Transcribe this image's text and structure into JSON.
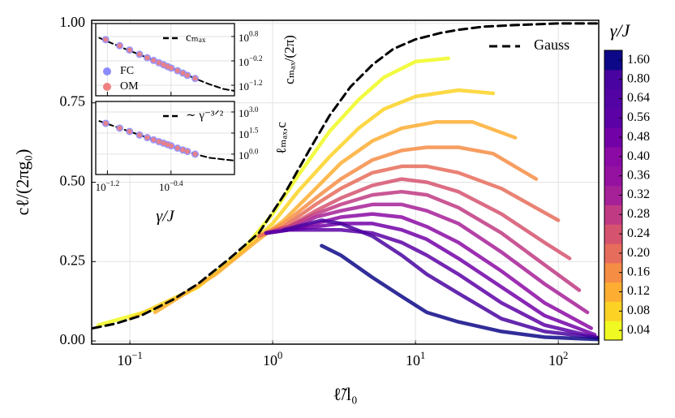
{
  "chart_data": [
    {
      "type": "line",
      "xlabel": "ℓ̃/l₀",
      "ylabel": "cℓ/(2πg₀)",
      "xlog": true,
      "xlim": [
        0.054,
        192
      ],
      "ylim": [
        -0.01,
        1.01
      ],
      "grid": true,
      "xticks": [
        {
          "value": 0.1,
          "label": "10",
          "exponent": "−1"
        },
        {
          "value": 1,
          "label": "10",
          "exponent": "0"
        },
        {
          "value": 10,
          "label": "10",
          "exponent": "1"
        },
        {
          "value": 100,
          "label": "10",
          "exponent": "2"
        }
      ],
      "yticks": [
        {
          "value": 0,
          "label": "0.00"
        },
        {
          "value": 0.25,
          "label": "0.25"
        },
        {
          "value": 0.5,
          "label": "0.50"
        },
        {
          "value": 0.75,
          "label": "0.75"
        },
        {
          "value": 1,
          "label": "1.00"
        }
      ],
      "legend": "upper right",
      "series": [
        {
          "color": "#f0f921",
          "x": [
            0.06,
            0.15,
            0.3,
            0.6,
            1,
            1.5,
            2.5,
            4,
            6,
            10,
            17
          ],
          "values": [
            0.05,
            0.1,
            0.17,
            0.28,
            0.4,
            0.52,
            0.66,
            0.76,
            0.83,
            0.88,
            0.89
          ]
        },
        {
          "color": "#fcd225",
          "x": [
            0.1,
            0.3,
            0.6,
            1,
            1.5,
            2.5,
            4,
            6,
            10,
            20,
            35
          ],
          "values": [
            0.07,
            0.17,
            0.28,
            0.37,
            0.47,
            0.58,
            0.67,
            0.73,
            0.77,
            0.79,
            0.78
          ]
        },
        {
          "color": "#fdae32",
          "x": [
            0.15,
            0.4,
            0.8,
            1.2,
            2,
            3,
            5,
            8,
            14,
            25,
            50
          ],
          "values": [
            0.09,
            0.21,
            0.32,
            0.38,
            0.48,
            0.56,
            0.63,
            0.67,
            0.69,
            0.69,
            0.64
          ]
        },
        {
          "color": "#f68d45",
          "x": [
            0.8,
            1.2,
            2,
            3,
            5,
            8,
            12,
            20,
            35,
            70
          ],
          "values": [
            0.33,
            0.37,
            0.45,
            0.51,
            0.57,
            0.6,
            0.61,
            0.61,
            0.59,
            0.51
          ]
        },
        {
          "color": "#e66c5c",
          "x": [
            0.8,
            1.2,
            2,
            3,
            5,
            8,
            12,
            20,
            40,
            100
          ],
          "values": [
            0.33,
            0.36,
            0.43,
            0.48,
            0.53,
            0.55,
            0.55,
            0.53,
            0.48,
            0.38
          ]
        },
        {
          "color": "#d5536f",
          "x": [
            0.9,
            1.3,
            2,
            3,
            5,
            8,
            12,
            20,
            40,
            80,
            120
          ],
          "values": [
            0.34,
            0.36,
            0.41,
            0.45,
            0.49,
            0.51,
            0.5,
            0.47,
            0.4,
            0.31,
            0.26
          ]
        },
        {
          "color": "#c03a83",
          "x": [
            0.9,
            1.3,
            2,
            3,
            5,
            8,
            12,
            20,
            40,
            80,
            140
          ],
          "values": [
            0.34,
            0.36,
            0.4,
            0.43,
            0.46,
            0.47,
            0.46,
            0.42,
            0.34,
            0.24,
            0.16
          ]
        },
        {
          "color": "#a62098",
          "x": [
            0.9,
            1.3,
            2,
            3,
            5,
            8,
            12,
            20,
            40,
            80,
            160
          ],
          "values": [
            0.34,
            0.35,
            0.39,
            0.41,
            0.43,
            0.43,
            0.41,
            0.37,
            0.28,
            0.18,
            0.09
          ]
        },
        {
          "color": "#8b0aa5",
          "x": [
            0.9,
            1.3,
            2,
            3,
            5,
            8,
            12,
            20,
            40,
            80,
            170
          ],
          "values": [
            0.34,
            0.35,
            0.37,
            0.39,
            0.4,
            0.39,
            0.36,
            0.31,
            0.22,
            0.12,
            0.04
          ]
        },
        {
          "color": "#7201a8",
          "x": [
            0.9,
            1.3,
            2,
            3,
            5,
            8,
            12,
            20,
            40,
            80,
            180
          ],
          "values": [
            0.34,
            0.35,
            0.36,
            0.37,
            0.37,
            0.35,
            0.32,
            0.26,
            0.17,
            0.08,
            0.02
          ]
        },
        {
          "color": "#5c01a6",
          "x": [
            0.9,
            1.3,
            2,
            3,
            5,
            8,
            12,
            20,
            40,
            80,
            190
          ],
          "values": [
            0.34,
            0.35,
            0.35,
            0.35,
            0.34,
            0.31,
            0.27,
            0.21,
            0.12,
            0.05,
            0.01
          ]
        },
        {
          "color": "#4903a0",
          "x": [
            1.2,
            2.2,
            3,
            5,
            8,
            12,
            20,
            40,
            80,
            190
          ],
          "values": [
            0.35,
            0.38,
            0.37,
            0.33,
            0.27,
            0.21,
            0.15,
            0.07,
            0.03,
            0.01
          ]
        },
        {
          "color": "#0d0887",
          "x": [
            2.2,
            3,
            5,
            8,
            12,
            20,
            40,
            80,
            190
          ],
          "values": [
            0.3,
            0.27,
            0.2,
            0.14,
            0.09,
            0.06,
            0.03,
            0.012,
            0.005
          ]
        },
        {
          "name": "Gauss",
          "color": "#000000",
          "style": "dashed",
          "x": [
            0.055,
            0.08,
            0.12,
            0.2,
            0.3,
            0.5,
            0.8,
            1.2,
            1.8,
            2.5,
            3.5,
            5,
            7,
            10,
            15,
            20,
            30,
            50,
            100,
            190
          ],
          "values": [
            0.04,
            0.055,
            0.08,
            0.13,
            0.18,
            0.26,
            0.34,
            0.46,
            0.6,
            0.71,
            0.8,
            0.87,
            0.92,
            0.95,
            0.97,
            0.98,
            0.99,
            0.995,
            1,
            1
          ]
        }
      ],
      "colorbar": {
        "label": "γ/J",
        "ticks": [
          0.04,
          0.08,
          0.12,
          0.16,
          {
            "value": 0.2,
            "label": "0.20"
          },
          0.24,
          0.28,
          0.32,
          0.36,
          {
            "value": 0.4,
            "label": "0.40"
          },
          0.48,
          0.56,
          0.64,
          {
            "value": 0.8,
            "label": "0.80"
          },
          {
            "value": 1.6,
            "label": "1.60"
          }
        ],
        "colors": [
          "#f0f921",
          "#fcd225",
          "#fdae32",
          "#f68d45",
          "#e66c5c",
          "#d5536f",
          "#c03a83",
          "#a62098",
          "#9512a1",
          "#8b0aa5",
          "#7201a8",
          "#5c01a6",
          "#5302a3",
          "#4903a0",
          "#0d0887"
        ]
      }
    },
    {
      "type": "scatter",
      "ylabel": "cₘₐₓ/(2π)",
      "xlog": true,
      "ylog": true,
      "xlim": [
        0.045,
        2.5
      ],
      "ylim": [
        0.0234,
        21.4
      ],
      "grid": true,
      "show_xticklabels": false,
      "xticks": [
        {
          "value": 0.0631,
          "label": "10",
          "exponent": "−1.2"
        },
        {
          "value": 0.398,
          "label": "10",
          "exponent": "−0.4"
        }
      ],
      "yticks": [
        {
          "value": 6.31,
          "label": "10",
          "exponent": "0.8"
        },
        {
          "value": 0.631,
          "label": "10",
          "exponent": "−0.2"
        },
        {
          "value": 0.0631,
          "label": "10",
          "exponent": "−1.2"
        }
      ],
      "series": [
        {
          "name": "cₘₐₓ",
          "color": "#000000",
          "style": "dashed",
          "x": [
            0.05,
            0.1,
            0.2,
            0.4,
            0.8,
            1.2,
            1.8,
            2.5
          ],
          "values": [
            5.5,
            2.1,
            0.85,
            0.32,
            0.12,
            0.07,
            0.045,
            0.037
          ]
        },
        {
          "name": "FC",
          "color": "#8c8cff",
          "style": "points",
          "x": [
            0.06,
            0.09,
            0.12,
            0.16,
            0.2,
            0.24,
            0.28,
            0.32,
            0.36,
            0.4,
            0.48,
            0.56,
            0.64,
            0.8
          ],
          "values": [
            4.68,
            2.65,
            1.76,
            1.17,
            0.85,
            0.66,
            0.53,
            0.44,
            0.37,
            0.32,
            0.25,
            0.2,
            0.16,
            0.12
          ]
        },
        {
          "name": "OM",
          "color": "#f08080",
          "style": "points",
          "x": [
            0.06,
            0.09,
            0.12,
            0.16,
            0.2,
            0.24,
            0.28,
            0.32,
            0.36,
            0.4,
            0.48,
            0.56,
            0.64,
            0.8
          ],
          "values": [
            4.68,
            2.65,
            1.76,
            1.17,
            0.85,
            0.66,
            0.53,
            0.44,
            0.37,
            0.32,
            0.25,
            0.2,
            0.16,
            0.12
          ]
        }
      ]
    },
    {
      "type": "scatter",
      "ylabel": "ℓₘₐₓ,c",
      "xlabel": "γ/J",
      "xlog": true,
      "ylog": true,
      "xlim": [
        0.045,
        2.5
      ],
      "ylim": [
        0.0355,
        5620
      ],
      "grid": true,
      "xticks": [
        {
          "value": 0.0631,
          "label": "10",
          "exponent": "−1.2"
        },
        {
          "value": 0.398,
          "label": "10",
          "exponent": "−0.4"
        }
      ],
      "yticks": [
        {
          "value": 1000,
          "label": "10",
          "exponent": "3.0"
        },
        {
          "value": 31.6,
          "label": "10",
          "exponent": "1.5"
        },
        {
          "value": 1,
          "label": "10",
          "exponent": "0.0"
        }
      ],
      "series": [
        {
          "name": "∼ γ⁻³ᐟ²",
          "color": "#000000",
          "style": "dashed",
          "x": [
            0.05,
            0.1,
            0.2,
            0.4,
            0.8,
            1.2,
            1.8,
            2.5
          ],
          "values": [
            224,
            58,
            15,
            3.8,
            1,
            0.56,
            0.42,
            0.35
          ]
        },
        {
          "color": "#8c8cff",
          "style": "points",
          "x": [
            0.06,
            0.09,
            0.12,
            0.16,
            0.2,
            0.24,
            0.28,
            0.32,
            0.36,
            0.4,
            0.48,
            0.56,
            0.64,
            0.8
          ],
          "values": [
            155,
            71,
            41,
            23,
            15,
            10.5,
            7.8,
            6,
            4.8,
            3.9,
            2.7,
            2,
            1.55,
            1
          ]
        },
        {
          "color": "#f08080",
          "style": "points",
          "x": [
            0.06,
            0.09,
            0.12,
            0.16,
            0.2,
            0.24,
            0.28,
            0.32,
            0.36,
            0.4,
            0.48,
            0.56,
            0.64,
            0.8
          ],
          "values": [
            155,
            71,
            41,
            23,
            15,
            10.5,
            7.8,
            6,
            4.8,
            3.9,
            2.7,
            2,
            1.55,
            1
          ]
        }
      ]
    }
  ]
}
